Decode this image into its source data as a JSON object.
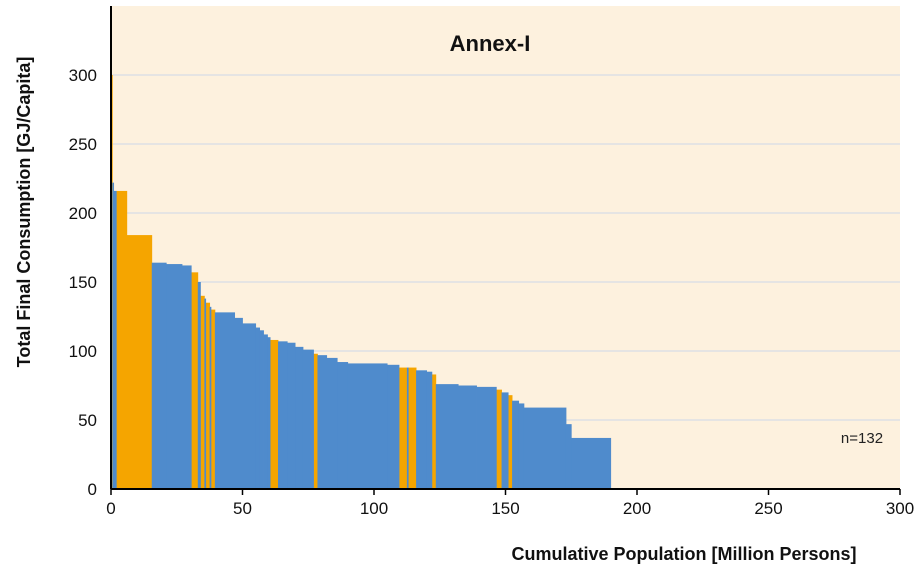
{
  "colors": {
    "background": "#fdf1de",
    "grid": "#d7dde6",
    "series_blue": "#4f8bcc",
    "series_orange": "#f5a500",
    "axis": "#000000"
  },
  "chart_data": {
    "type": "bar",
    "subtype": "variable-width step distribution",
    "title": "Annex-I",
    "xlabel": "Cumulative Population [Million Persons]",
    "ylabel": "Total Final Consumption [GJ/Capita]",
    "xlim": [
      0,
      300
    ],
    "ylim": [
      0,
      350
    ],
    "xticks": [
      0,
      50,
      100,
      150,
      200,
      250,
      300
    ],
    "yticks": [
      0,
      50,
      100,
      150,
      200,
      250,
      300
    ],
    "grid": true,
    "annotation": "n=132",
    "series": [
      {
        "color_key": "series_orange",
        "segments": [
          {
            "x0": 0,
            "x1": 0.5,
            "y": 300
          },
          {
            "x0": 2,
            "x1": 6,
            "y": 216
          },
          {
            "x0": 6,
            "x1": 15.5,
            "y": 184
          },
          {
            "x0": 30.5,
            "x1": 33,
            "y": 157
          },
          {
            "x0": 34,
            "x1": 35.5,
            "y": 140
          },
          {
            "x0": 36,
            "x1": 37.5,
            "y": 135
          },
          {
            "x0": 38,
            "x1": 39.5,
            "y": 130
          },
          {
            "x0": 60.5,
            "x1": 63.5,
            "y": 108
          },
          {
            "x0": 77,
            "x1": 78.5,
            "y": 98
          },
          {
            "x0": 109.5,
            "x1": 112.5,
            "y": 88
          },
          {
            "x0": 113,
            "x1": 116,
            "y": 88
          },
          {
            "x0": 122,
            "x1": 123.5,
            "y": 83
          },
          {
            "x0": 146.5,
            "x1": 148.5,
            "y": 72
          },
          {
            "x0": 151,
            "x1": 152.5,
            "y": 68
          }
        ]
      },
      {
        "color_key": "series_blue",
        "segments": [
          {
            "x0": 0.5,
            "x1": 1,
            "y": 222
          },
          {
            "x0": 1,
            "x1": 2,
            "y": 216
          },
          {
            "x0": 15.5,
            "x1": 21,
            "y": 164
          },
          {
            "x0": 21,
            "x1": 27,
            "y": 163
          },
          {
            "x0": 27,
            "x1": 30.5,
            "y": 162
          },
          {
            "x0": 33,
            "x1": 34,
            "y": 150
          },
          {
            "x0": 35.5,
            "x1": 36,
            "y": 138
          },
          {
            "x0": 37.5,
            "x1": 38,
            "y": 132
          },
          {
            "x0": 39.5,
            "x1": 47,
            "y": 128
          },
          {
            "x0": 47,
            "x1": 50,
            "y": 124
          },
          {
            "x0": 50,
            "x1": 55,
            "y": 120
          },
          {
            "x0": 55,
            "x1": 56.5,
            "y": 117
          },
          {
            "x0": 56.5,
            "x1": 58,
            "y": 115
          },
          {
            "x0": 58,
            "x1": 59.5,
            "y": 112
          },
          {
            "x0": 59.5,
            "x1": 60.5,
            "y": 110
          },
          {
            "x0": 63.5,
            "x1": 67,
            "y": 107
          },
          {
            "x0": 67,
            "x1": 70,
            "y": 106
          },
          {
            "x0": 70,
            "x1": 73,
            "y": 103
          },
          {
            "x0": 73,
            "x1": 77,
            "y": 101
          },
          {
            "x0": 78.5,
            "x1": 82,
            "y": 97
          },
          {
            "x0": 82,
            "x1": 86,
            "y": 95
          },
          {
            "x0": 86,
            "x1": 90,
            "y": 92
          },
          {
            "x0": 90,
            "x1": 105,
            "y": 91
          },
          {
            "x0": 105,
            "x1": 109.5,
            "y": 90
          },
          {
            "x0": 112.5,
            "x1": 113,
            "y": 88
          },
          {
            "x0": 116,
            "x1": 120,
            "y": 86
          },
          {
            "x0": 120,
            "x1": 122,
            "y": 85
          },
          {
            "x0": 123.5,
            "x1": 132,
            "y": 76
          },
          {
            "x0": 132,
            "x1": 139,
            "y": 75
          },
          {
            "x0": 139,
            "x1": 146.5,
            "y": 74
          },
          {
            "x0": 148.5,
            "x1": 151,
            "y": 70
          },
          {
            "x0": 152.5,
            "x1": 155,
            "y": 64
          },
          {
            "x0": 155,
            "x1": 157,
            "y": 62
          },
          {
            "x0": 157,
            "x1": 173,
            "y": 59
          },
          {
            "x0": 173,
            "x1": 175,
            "y": 47
          },
          {
            "x0": 175,
            "x1": 190,
            "y": 37
          }
        ]
      }
    ]
  }
}
